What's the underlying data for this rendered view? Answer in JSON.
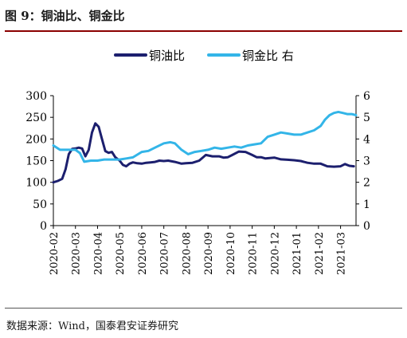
{
  "figure": {
    "title": "图 9：铜油比、铜金比",
    "source": "数据来源：Wind，国泰君安证券研究"
  },
  "colors": {
    "series_1": "#1c1f6e",
    "series_2": "#33b5e8",
    "title_rule": "#8b0000",
    "axis": "#000000"
  },
  "chart_data": {
    "type": "line",
    "legend_position": "top-center",
    "grid": false,
    "x_ticks": [
      "2020-02",
      "2020-03",
      "2020-04",
      "2020-05",
      "2020-06",
      "2020-07",
      "2020-08",
      "2020-09",
      "2020-10",
      "2020-11",
      "2020-12",
      "2021-01",
      "2021-02",
      "2021-03"
    ],
    "x_range": [
      0,
      13.7
    ],
    "y_left": {
      "ticks": [
        "0",
        "50",
        "100",
        "150",
        "200",
        "250",
        "300"
      ],
      "range": [
        0,
        300
      ]
    },
    "y_right": {
      "ticks": [
        "0",
        "1",
        "2",
        "3",
        "4",
        "5",
        "6"
      ],
      "range": [
        0,
        6
      ]
    },
    "series": [
      {
        "name": "铜油比",
        "axis": "left",
        "x": [
          0,
          0.2,
          0.4,
          0.55,
          0.7,
          0.85,
          1.0,
          1.15,
          1.3,
          1.45,
          1.6,
          1.75,
          1.9,
          2.05,
          2.2,
          2.35,
          2.5,
          2.65,
          2.8,
          3.0,
          3.15,
          3.3,
          3.45,
          3.6,
          3.8,
          4.0,
          4.2,
          4.4,
          4.6,
          4.8,
          5.0,
          5.2,
          5.5,
          5.8,
          6.0,
          6.3,
          6.6,
          6.9,
          7.2,
          7.5,
          7.7,
          7.9,
          8.1,
          8.4,
          8.7,
          9.0,
          9.2,
          9.4,
          9.6,
          9.8,
          10.0,
          10.3,
          10.6,
          10.9,
          11.2,
          11.5,
          11.8,
          12.1,
          12.4,
          12.7,
          13.0,
          13.2,
          13.4,
          13.6
        ],
        "y": [
          100,
          103,
          108,
          130,
          165,
          177,
          178,
          180,
          178,
          160,
          175,
          215,
          236,
          228,
          200,
          172,
          168,
          170,
          158,
          150,
          140,
          137,
          143,
          146,
          144,
          143,
          145,
          146,
          147,
          150,
          149,
          150,
          147,
          143,
          144,
          145,
          150,
          163,
          160,
          160,
          157,
          158,
          163,
          171,
          170,
          163,
          158,
          158,
          155,
          156,
          157,
          153,
          152,
          151,
          149,
          145,
          143,
          143,
          137,
          136,
          137,
          142,
          138,
          137
        ]
      },
      {
        "name": "铜金比 右",
        "axis": "right",
        "x": [
          0,
          0.3,
          0.6,
          1.0,
          1.2,
          1.4,
          1.7,
          2.0,
          2.3,
          2.6,
          3.0,
          3.3,
          3.6,
          4.0,
          4.3,
          4.6,
          5.0,
          5.3,
          5.5,
          5.8,
          6.1,
          6.4,
          6.7,
          7.0,
          7.3,
          7.6,
          7.9,
          8.2,
          8.5,
          8.8,
          9.1,
          9.4,
          9.7,
          10.0,
          10.3,
          10.6,
          10.9,
          11.2,
          11.5,
          11.8,
          12.1,
          12.3,
          12.5,
          12.7,
          12.9,
          13.1,
          13.3,
          13.5,
          13.7
        ],
        "y": [
          3.7,
          3.5,
          3.5,
          3.5,
          3.35,
          2.95,
          3.0,
          3.0,
          3.05,
          3.05,
          3.05,
          3.1,
          3.15,
          3.4,
          3.45,
          3.6,
          3.8,
          3.85,
          3.8,
          3.5,
          3.3,
          3.4,
          3.45,
          3.5,
          3.6,
          3.55,
          3.6,
          3.65,
          3.6,
          3.7,
          3.75,
          3.8,
          4.1,
          4.2,
          4.3,
          4.25,
          4.2,
          4.2,
          4.3,
          4.4,
          4.6,
          4.9,
          5.1,
          5.2,
          5.25,
          5.2,
          5.15,
          5.15,
          5.1
        ]
      }
    ]
  }
}
